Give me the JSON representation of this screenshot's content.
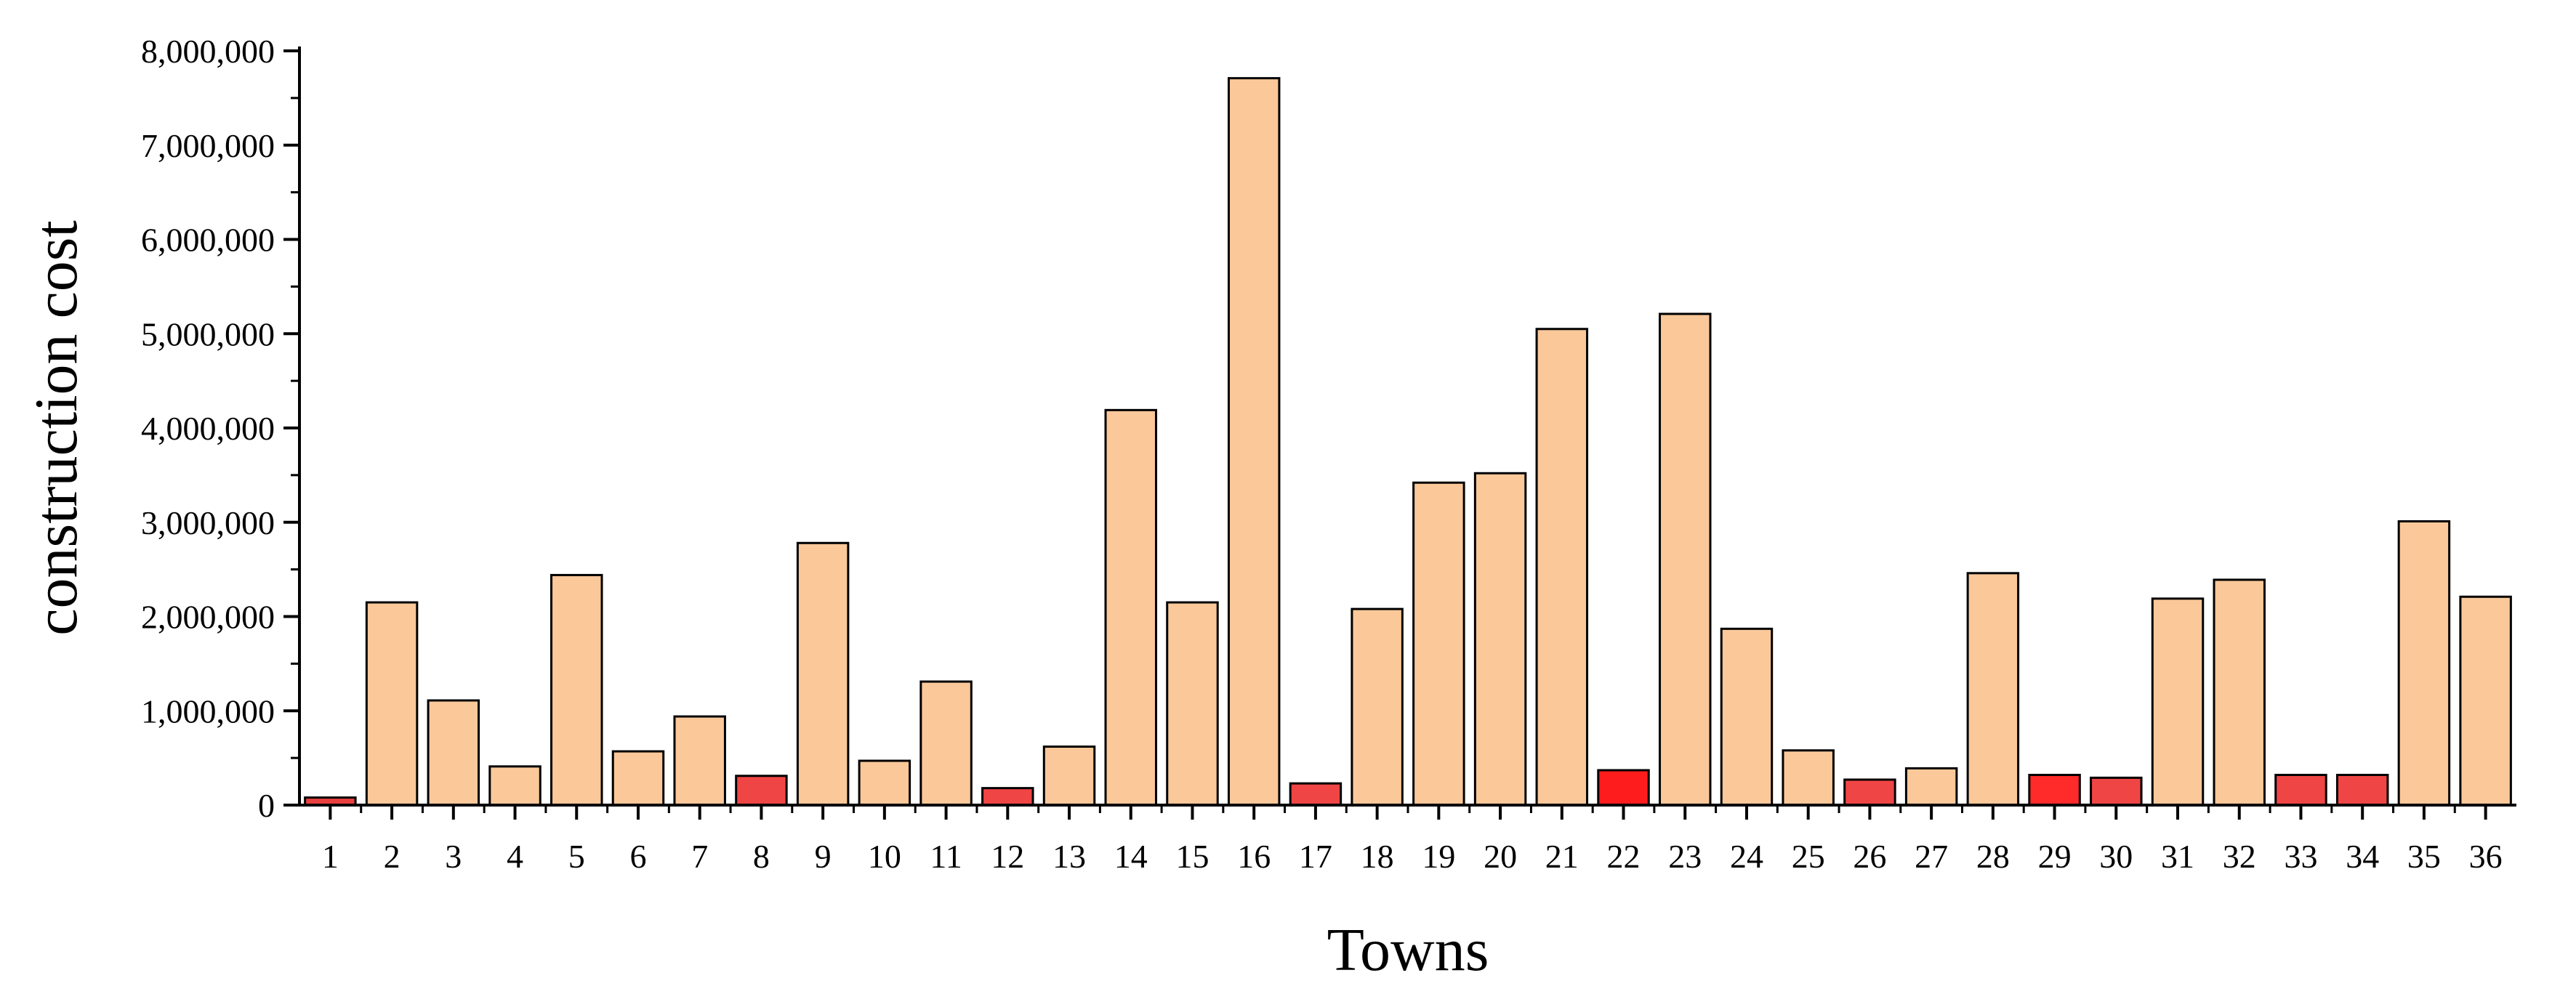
{
  "chart_data": {
    "type": "bar",
    "title": "",
    "xlabel": "Towns",
    "ylabel": "construction cost",
    "ylim": [
      0,
      8000000
    ],
    "yticks": [
      0,
      1000000,
      2000000,
      3000000,
      4000000,
      5000000,
      6000000,
      7000000,
      8000000
    ],
    "ytick_labels": [
      "0",
      "1,000,000",
      "2,000,000",
      "3,000,000",
      "4,000,000",
      "5,000,000",
      "6,000,000",
      "7,000,000",
      "8,000,000"
    ],
    "categories": [
      "1",
      "2",
      "3",
      "4",
      "5",
      "6",
      "7",
      "8",
      "9",
      "10",
      "11",
      "12",
      "13",
      "14",
      "15",
      "16",
      "17",
      "18",
      "19",
      "20",
      "21",
      "22",
      "23",
      "24",
      "25",
      "26",
      "27",
      "28",
      "29",
      "30",
      "31",
      "32",
      "33",
      "34",
      "35",
      "36"
    ],
    "values": [
      80000,
      2150000,
      1110000,
      410000,
      2440000,
      570000,
      940000,
      310000,
      2780000,
      470000,
      1310000,
      180000,
      620000,
      4190000,
      2150000,
      7710000,
      230000,
      2080000,
      3420000,
      3520000,
      5050000,
      370000,
      5210000,
      1870000,
      580000,
      270000,
      390000,
      2460000,
      320000,
      290000,
      2190000,
      2390000,
      320000,
      320000,
      3010000,
      2210000
    ],
    "colors": [
      "#E84040",
      "#FAC899",
      "#FAC899",
      "#FAC899",
      "#FAC899",
      "#FAC899",
      "#FAC899",
      "#F04545",
      "#FAC899",
      "#FAC899",
      "#FAC899",
      "#F04545",
      "#FAC899",
      "#FAC899",
      "#FAC899",
      "#FAC899",
      "#F04545",
      "#FAC899",
      "#FAC899",
      "#FAC899",
      "#FAC899",
      "#FF1C1C",
      "#FAC899",
      "#FAC899",
      "#FAC899",
      "#F04545",
      "#FAC899",
      "#FAC899",
      "#FF2A2A",
      "#F04545",
      "#FAC899",
      "#FAC899",
      "#F04545",
      "#F04545",
      "#FAC899",
      "#FAC899"
    ],
    "grid": false,
    "legend": "none"
  }
}
